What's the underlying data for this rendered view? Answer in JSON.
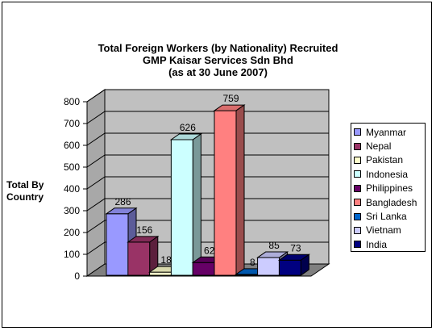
{
  "chart_data": {
    "type": "bar",
    "title_lines": [
      "Total Foreign Workers (by Nationality) Recruited",
      "GMP Kaisar Services Sdn Bhd",
      "(as at 30 June 2007)"
    ],
    "ylabel": "Total By Country",
    "ylim": [
      0,
      800
    ],
    "yticks": [
      0,
      100,
      200,
      300,
      400,
      500,
      600,
      700,
      800
    ],
    "grid": true,
    "legend_position": "right",
    "categories": [
      "Myanmar",
      "Nepal",
      "Pakistan",
      "Indonesia",
      "Philippines",
      "Bangladesh",
      "Sri Lanka",
      "Vietnam",
      "India"
    ],
    "values": [
      286,
      156,
      18,
      626,
      62,
      759,
      8,
      85,
      73
    ],
    "colors": [
      "#9999ff",
      "#993366",
      "#ffffcc",
      "#ccffff",
      "#660066",
      "#ff8080",
      "#0066cc",
      "#ccccff",
      "#000080"
    ]
  }
}
